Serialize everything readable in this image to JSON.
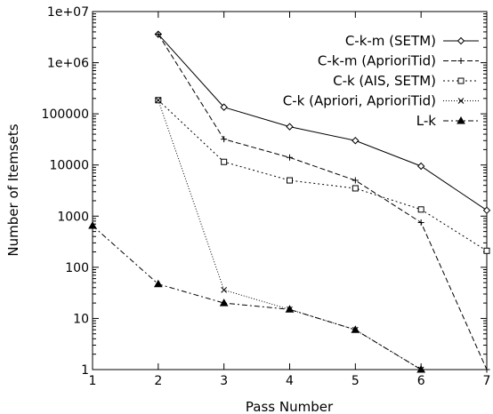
{
  "chart_data": {
    "type": "line",
    "xlabel": "Pass Number",
    "ylabel": "Number of Itemsets",
    "x_ticks": [
      "1",
      "2",
      "3",
      "4",
      "5",
      "6",
      "7"
    ],
    "y_ticks": [
      {
        "value": 1,
        "label": "1"
      },
      {
        "value": 10,
        "label": "10"
      },
      {
        "value": 100,
        "label": "100"
      },
      {
        "value": 1000,
        "label": "1000"
      },
      {
        "value": 10000,
        "label": "10000"
      },
      {
        "value": 100000,
        "label": "100000"
      },
      {
        "value": 1000000,
        "label": "1e+06"
      },
      {
        "value": 10000000,
        "label": "1e+07"
      }
    ],
    "xlim": [
      1,
      7
    ],
    "ylim": [
      1,
      10000000
    ],
    "yscale": "log",
    "grid": false,
    "legend_position": "top-right",
    "series": [
      {
        "name": "C-k-m (SETM)",
        "dash": "solid",
        "marker": "diamond",
        "color": "#000000",
        "points": [
          [
            2,
            3600000
          ],
          [
            3,
            135000
          ],
          [
            4,
            56000
          ],
          [
            5,
            30000
          ],
          [
            6,
            9500
          ],
          [
            7,
            1300
          ]
        ]
      },
      {
        "name": "C-k-m (AprioriTid)",
        "dash": "dashed",
        "marker": "plus",
        "color": "#000000",
        "points": [
          [
            2,
            3600000
          ],
          [
            3,
            32000
          ],
          [
            4,
            14000
          ],
          [
            5,
            5000
          ],
          [
            6,
            750
          ],
          [
            7,
            1
          ]
        ]
      },
      {
        "name": "C-k (AIS, SETM)",
        "dash": "dotted",
        "marker": "square",
        "color": "#000000",
        "points": [
          [
            2,
            185000
          ],
          [
            3,
            11500
          ],
          [
            4,
            5000
          ],
          [
            5,
            3500
          ],
          [
            6,
            1350
          ],
          [
            7,
            210
          ]
        ]
      },
      {
        "name": "C-k (Apriori, AprioriTid)",
        "dash": "fine-dotted",
        "marker": "cross",
        "color": "#000000",
        "points": [
          [
            2,
            185000
          ],
          [
            3,
            36
          ],
          [
            4,
            15
          ],
          [
            5,
            6
          ],
          [
            6,
            1
          ]
        ]
      },
      {
        "name": "L-k",
        "dash": "dashdot",
        "marker": "triangle",
        "color": "#000000",
        "points": [
          [
            1,
            650
          ],
          [
            2,
            47
          ],
          [
            3,
            20
          ],
          [
            4,
            15
          ],
          [
            5,
            6
          ],
          [
            6,
            1
          ]
        ]
      }
    ]
  }
}
